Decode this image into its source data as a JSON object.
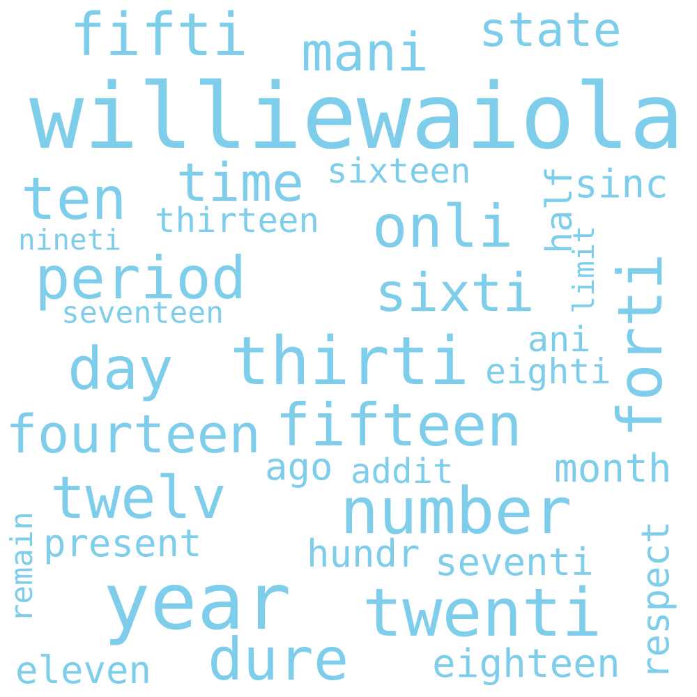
{
  "word_cloud": {
    "color": "#7ecdea",
    "background": "#ffffff",
    "words": {
      "williewaiola": "williewaiola",
      "fifti": "fifti",
      "mani": "mani",
      "state": "state",
      "ten": "ten",
      "time": "time",
      "sixteen": "sixteen",
      "sinc": "sinc",
      "half": "half",
      "onli": "onli",
      "thirteen": "thirteen",
      "nineti": "nineti",
      "period": "period",
      "sixti": "sixti",
      "limit": "limit",
      "forti": "forti",
      "seventeen": "seventeen",
      "ani": "ani",
      "day": "day",
      "thirti": "thirti",
      "eighti": "eighti",
      "fourteen": "fourteen",
      "fifteen": "fifteen",
      "ago": "ago",
      "addit": "addit",
      "month": "month",
      "twelv": "twelv",
      "number": "number",
      "remain": "remain",
      "respect": "respect",
      "present": "present",
      "hundr": "hundr",
      "seventi": "seventi",
      "year": "year",
      "twenti": "twenti",
      "dure": "dure",
      "eleven": "eleven",
      "eighteen": "eighteen"
    }
  }
}
